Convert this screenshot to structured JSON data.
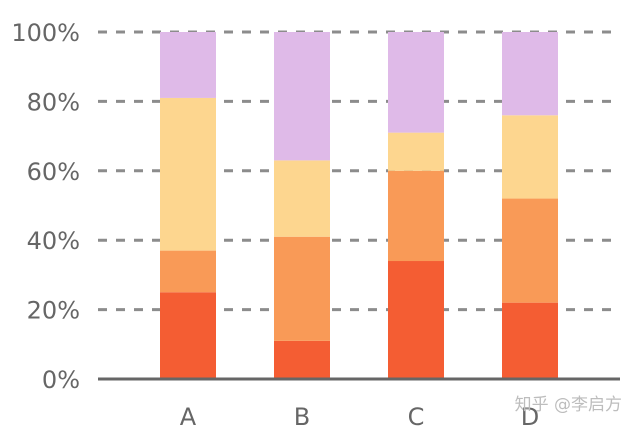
{
  "watermark": "知乎 @李启方",
  "chart_data": {
    "type": "bar",
    "stacked": true,
    "categories": [
      "A",
      "B",
      "C",
      "D"
    ],
    "series": [
      {
        "values": [
          25,
          11,
          34,
          22
        ],
        "color": "#f45d33"
      },
      {
        "values": [
          12,
          30,
          26,
          30
        ],
        "color": "#f99a57"
      },
      {
        "values": [
          44,
          22,
          11,
          24
        ],
        "color": "#fdd68f"
      },
      {
        "values": [
          19,
          37,
          29,
          24
        ],
        "color": "#dfbae8"
      }
    ],
    "ylim": [
      0,
      100
    ],
    "yticks": [
      "0%",
      "20%",
      "40%",
      "60%",
      "80%",
      "100%"
    ],
    "grid": true,
    "grid_style": "dashed",
    "xlabel": "",
    "ylabel": ""
  }
}
